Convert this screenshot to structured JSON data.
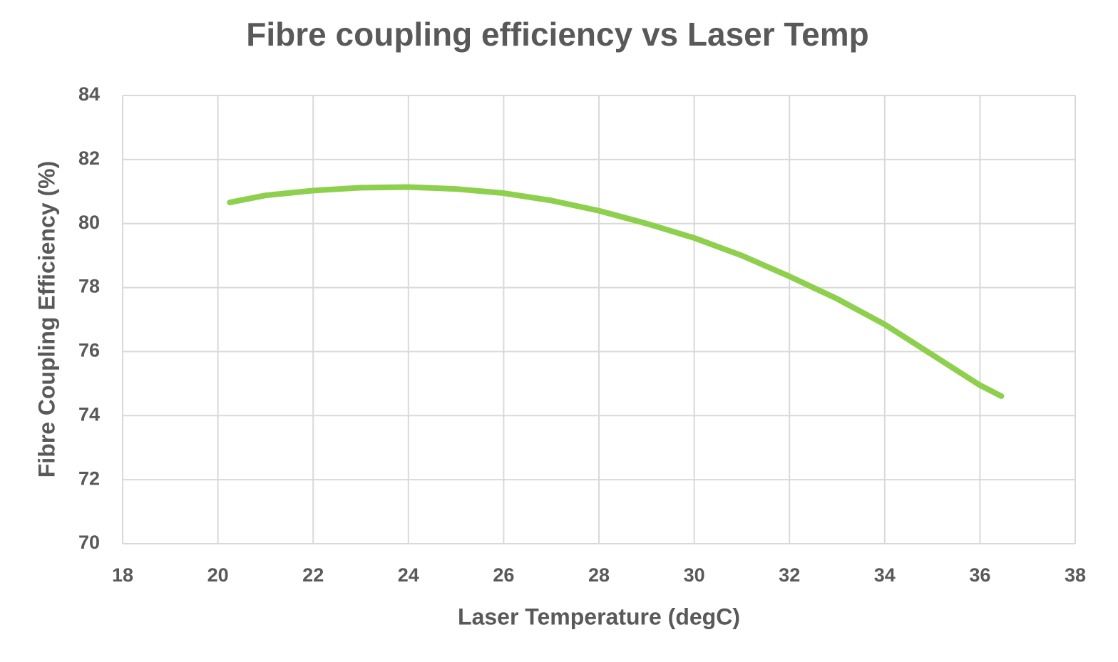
{
  "chart_data": {
    "type": "line",
    "title": "Fibre coupling efficiency vs Laser Temp",
    "x_label": "Laser Temperature (degC)",
    "y_label": "Fibre Coupling Efficiency (%)",
    "x": [
      20.25,
      21,
      22,
      23,
      24,
      25,
      26,
      27,
      28,
      29,
      30,
      31,
      32,
      33,
      34,
      35,
      36,
      36.45
    ],
    "series": [
      {
        "name": "Fibre coupling efficiency",
        "color": "#8ed04e",
        "values": [
          80.66,
          80.88,
          81.03,
          81.12,
          81.14,
          81.08,
          80.95,
          80.72,
          80.4,
          80.0,
          79.55,
          79.0,
          78.35,
          77.65,
          76.85,
          75.9,
          74.95,
          74.61
        ]
      }
    ],
    "xlim": [
      18,
      38
    ],
    "xticks": [
      18,
      20,
      22,
      24,
      26,
      28,
      30,
      32,
      34,
      36,
      38
    ],
    "ylim": [
      70,
      84
    ],
    "yticks": [
      70,
      72,
      74,
      76,
      78,
      80,
      82,
      84
    ],
    "grid": true
  }
}
